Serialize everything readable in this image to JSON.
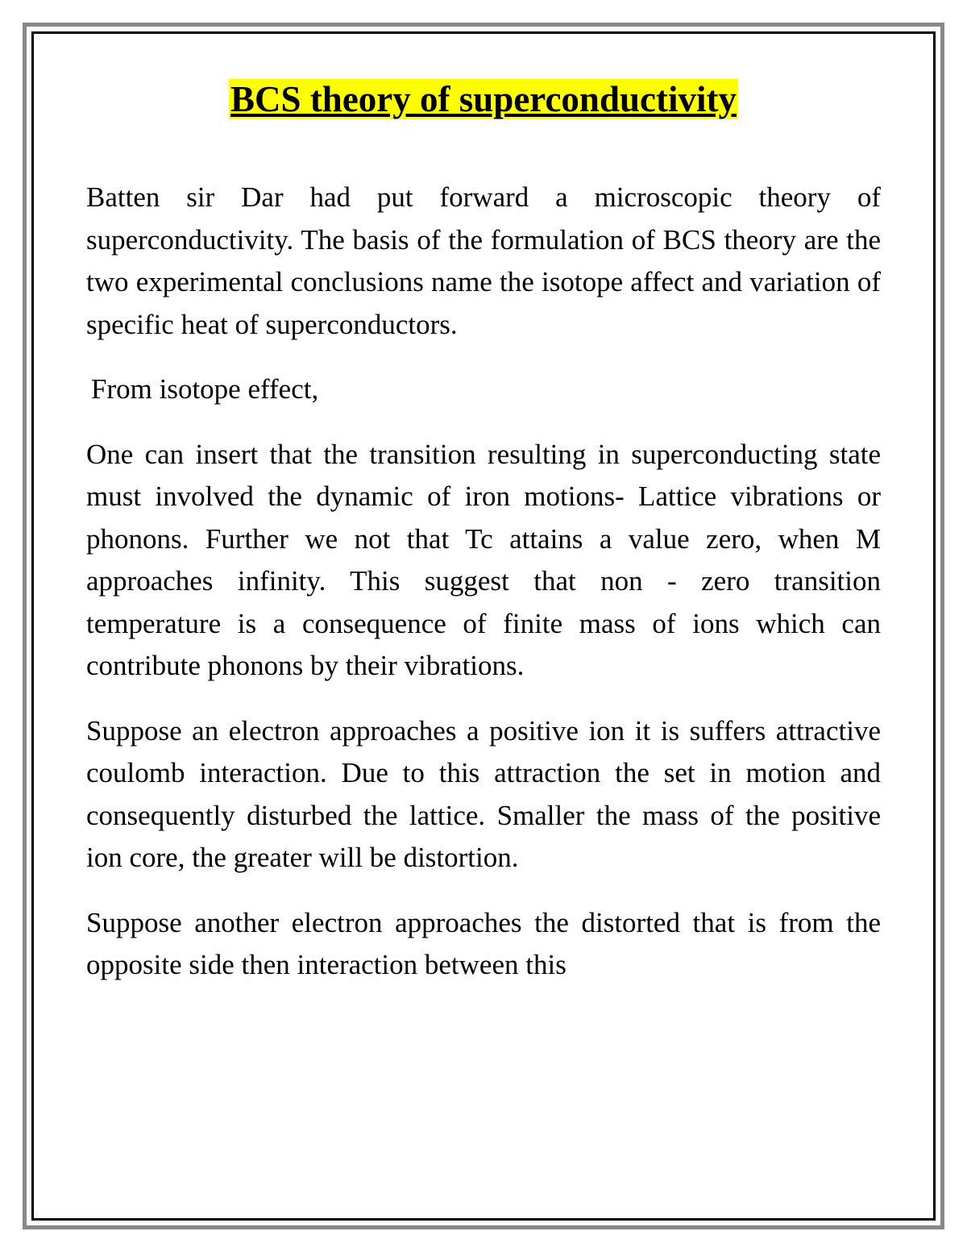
{
  "document": {
    "title": "BCS theory of superconductivity",
    "title_highlight_color": "#ffff00",
    "title_fontsize": 45,
    "body_fontsize": 35,
    "border_outer_color": "#888888",
    "border_inner_color": "#000000",
    "background_color": "#ffffff",
    "text_color": "#000000",
    "paragraphs": [
      "Batten sir Dar had put forward a microscopic theory of superconductivity. The basis of the formulation of BCS theory are the two experimental conclusions name the isotope affect and variation of specific heat of superconductors.",
      "From isotope effect,",
      "One can insert that the transition resulting in superconducting state must involved the dynamic of iron motions- Lattice vibrations or phonons. Further we not that Tc attains a value zero, when M approaches infinity. This suggest that non - zero transition temperature is a consequence of finite mass of ions which can contribute phonons by their vibrations.",
      "Suppose an electron approaches a positive ion it is suffers attractive coulomb interaction. Due to this attraction the set in motion and consequently disturbed the lattice. Smaller the mass of the positive ion core, the greater will be distortion.",
      "Suppose another electron approaches the distorted that is from the opposite side then interaction between this"
    ]
  }
}
